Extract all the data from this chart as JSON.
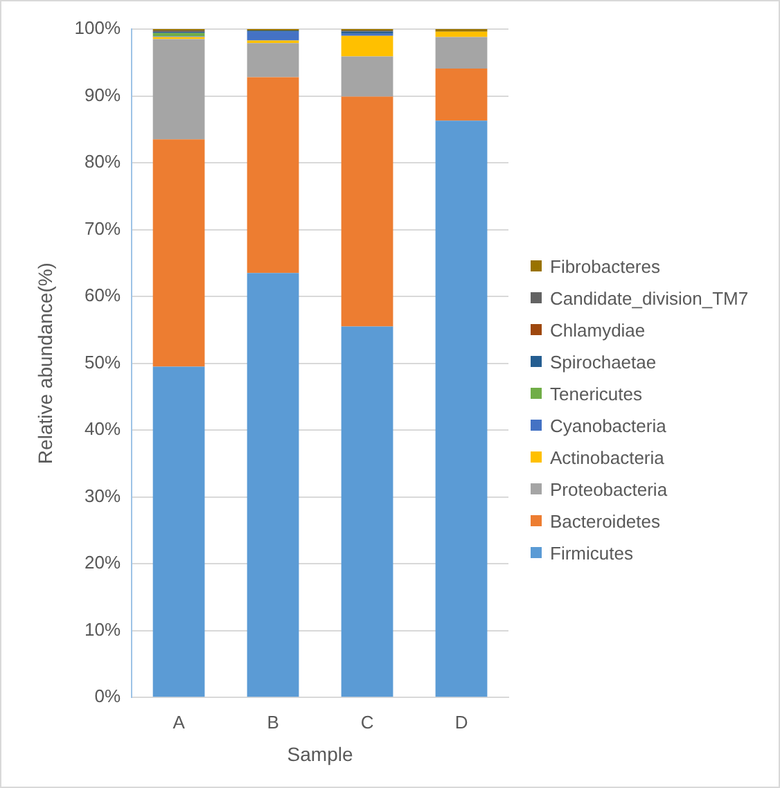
{
  "chart_data": {
    "type": "bar",
    "stacked": true,
    "xlabel": "Sample",
    "ylabel": "Relative abundance(%)",
    "categories": [
      "A",
      "B",
      "C",
      "D"
    ],
    "series": [
      {
        "name": "Firmicutes",
        "color": "#5b9bd5",
        "values": [
          49.5,
          63.5,
          55.5,
          86.3
        ]
      },
      {
        "name": "Bacteroidetes",
        "color": "#ed7d31",
        "values": [
          34,
          29.3,
          34.4,
          7.8
        ]
      },
      {
        "name": "Proteobacteria",
        "color": "#a5a5a5",
        "values": [
          15,
          5.1,
          6,
          4.7
        ]
      },
      {
        "name": "Actinobacteria",
        "color": "#ffc000",
        "values": [
          0.3,
          0.4,
          3.1,
          0.8
        ]
      },
      {
        "name": "Cyanobacteria",
        "color": "#4472c4",
        "values": [
          0.1,
          1.3,
          0.3,
          0
        ]
      },
      {
        "name": "Tenericutes",
        "color": "#70ad47",
        "values": [
          0.5,
          0,
          0,
          0
        ]
      },
      {
        "name": "Spirochaetae",
        "color": "#255e91",
        "values": [
          0.2,
          0.2,
          0.3,
          0
        ]
      },
      {
        "name": "Chlamydiae",
        "color": "#9e480e",
        "values": [
          0.1,
          0,
          0,
          0
        ]
      },
      {
        "name": "Candidate_division_TM7",
        "color": "#636363",
        "values": [
          0.1,
          0,
          0.2,
          0
        ]
      },
      {
        "name": "Fibrobacteres",
        "color": "#997300",
        "values": [
          0.2,
          0.2,
          0.2,
          0.4
        ]
      }
    ],
    "ylim": [
      0,
      100
    ],
    "yticks": [
      {
        "value": 0,
        "label": "0%"
      },
      {
        "value": 10,
        "label": "10%"
      },
      {
        "value": 20,
        "label": "20%"
      },
      {
        "value": 30,
        "label": "30%"
      },
      {
        "value": 40,
        "label": "40%"
      },
      {
        "value": 50,
        "label": "50%"
      },
      {
        "value": 60,
        "label": "60%"
      },
      {
        "value": 70,
        "label": "70%"
      },
      {
        "value": 80,
        "label": "80%"
      },
      {
        "value": 90,
        "label": "90%"
      },
      {
        "value": 100,
        "label": "100%"
      }
    ],
    "grid": "y",
    "legend": "right"
  }
}
